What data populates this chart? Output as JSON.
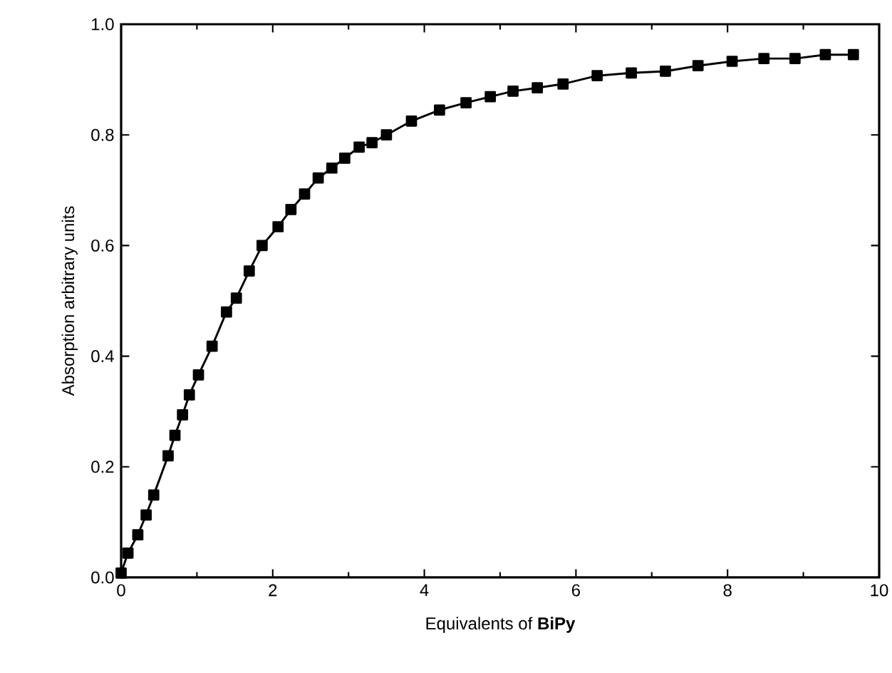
{
  "chart_data": {
    "type": "line",
    "xlabel": "Equivalents of **BiPy**",
    "ylabel": "Absorption arbitrary units",
    "xlim": [
      0,
      10
    ],
    "ylim": [
      0,
      1
    ],
    "xticks": [
      0,
      2,
      4,
      6,
      8,
      10
    ],
    "yticks": [
      {
        "value": 0,
        "label": "0.0"
      },
      0.2,
      0.4,
      0.6,
      0.8,
      {
        "value": 1,
        "label": "1.0"
      }
    ],
    "marker": "square",
    "line_style": "solid",
    "series": [
      {
        "color": "#000000",
        "x": [
          0,
          0.09,
          0.22,
          0.33,
          0.43,
          0.62,
          0.71,
          0.81,
          0.9,
          1.02,
          1.2,
          1.39,
          1.52,
          1.69,
          1.86,
          2.07,
          2.24,
          2.42,
          2.6,
          2.78,
          2.95,
          3.14,
          3.31,
          3.5,
          3.83,
          4.2,
          4.55,
          4.87,
          5.17,
          5.49,
          5.83,
          6.28,
          6.73,
          7.18,
          7.61,
          8.06,
          8.48,
          8.89,
          9.29,
          9.66
        ],
        "values": [
          0.008,
          0.044,
          0.077,
          0.113,
          0.149,
          0.22,
          0.257,
          0.294,
          0.33,
          0.366,
          0.418,
          0.48,
          0.505,
          0.554,
          0.6,
          0.634,
          0.665,
          0.693,
          0.722,
          0.74,
          0.758,
          0.778,
          0.786,
          0.8,
          0.825,
          0.845,
          0.858,
          0.869,
          0.879,
          0.885,
          0.892,
          0.907,
          0.912,
          0.915,
          0.925,
          0.933,
          0.938,
          0.938,
          0.945,
          0.945
        ]
      }
    ]
  }
}
